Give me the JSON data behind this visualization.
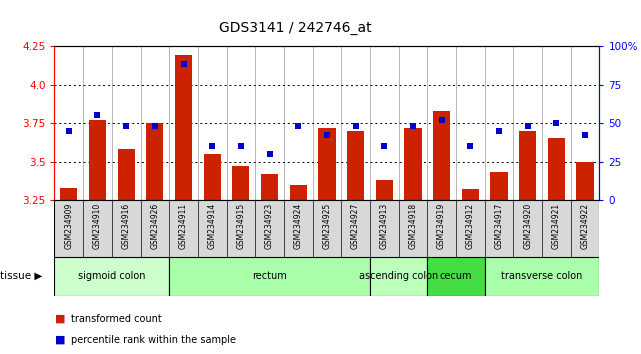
{
  "title": "GDS3141 / 242746_at",
  "samples": [
    "GSM234909",
    "GSM234910",
    "GSM234916",
    "GSM234926",
    "GSM234911",
    "GSM234914",
    "GSM234915",
    "GSM234923",
    "GSM234924",
    "GSM234925",
    "GSM234927",
    "GSM234913",
    "GSM234918",
    "GSM234919",
    "GSM234912",
    "GSM234917",
    "GSM234920",
    "GSM234921",
    "GSM234922"
  ],
  "bar_values": [
    3.33,
    3.77,
    3.58,
    3.75,
    4.19,
    3.55,
    3.47,
    3.42,
    3.35,
    3.72,
    3.7,
    3.38,
    3.72,
    3.83,
    3.32,
    3.43,
    3.7,
    3.65,
    3.5
  ],
  "dot_values": [
    45,
    55,
    48,
    48,
    88,
    35,
    35,
    30,
    48,
    42,
    48,
    35,
    48,
    52,
    35,
    45,
    48,
    50,
    42
  ],
  "ylim_left": [
    3.25,
    4.25
  ],
  "ylim_right": [
    0,
    100
  ],
  "yticks_left": [
    3.25,
    3.5,
    3.75,
    4.0,
    4.25
  ],
  "yticks_right": [
    0,
    25,
    50,
    75,
    100
  ],
  "bar_color": "#CC2200",
  "dot_color": "#0000CC",
  "tissue_groups": [
    {
      "label": "sigmoid colon",
      "start": 0,
      "end": 4
    },
    {
      "label": "rectum",
      "start": 4,
      "end": 11
    },
    {
      "label": "ascending colon",
      "start": 11,
      "end": 13
    },
    {
      "label": "cecum",
      "start": 13,
      "end": 15
    },
    {
      "label": "transverse colon",
      "start": 15,
      "end": 19
    }
  ],
  "tissue_colors": [
    "#CCFFCC",
    "#AAFFAA",
    "#BBFFBB",
    "#44DD44",
    "#AAFFAA"
  ],
  "legend_bar_label": "transformed count",
  "legend_dot_label": "percentile rank within the sample"
}
